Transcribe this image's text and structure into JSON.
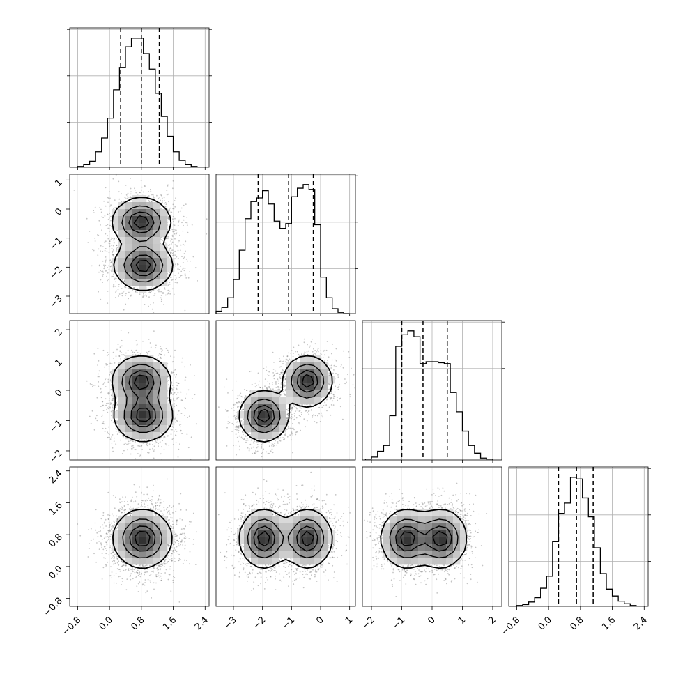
{
  "chart_data": {
    "type": "corner",
    "ticks": {
      "x0": [
        "−0.8",
        "0.0",
        "0.8",
        "1.6",
        "2.4"
      ],
      "x1": [
        "−3",
        "−2",
        "−1",
        "0",
        "1"
      ],
      "x2": [
        "−2",
        "−1",
        "0",
        "1",
        "2"
      ],
      "x3": [
        "−0.8",
        "0.0",
        "0.8",
        "1.6",
        "2.4"
      ],
      "y1": [
        "1",
        "0",
        "−1",
        "−2",
        "−3"
      ],
      "y2": [
        "2",
        "1",
        "0",
        "−1",
        "−2"
      ],
      "y3": [
        "2.4",
        "1.6",
        "0.8",
        "0.0",
        "−0.8"
      ]
    },
    "variables": [
      {
        "range": [
          -1.0,
          2.5
        ],
        "tick_values": [
          -0.8,
          0.0,
          0.8,
          1.6,
          2.4
        ],
        "quantiles": [
          0.28,
          0.8,
          1.25
        ]
      },
      {
        "range": [
          -3.6,
          1.2
        ],
        "tick_values": [
          -3,
          -2,
          -1,
          0,
          1
        ],
        "quantiles": [
          -2.15,
          -1.1,
          -0.25
        ]
      },
      {
        "range": [
          -2.3,
          2.3
        ],
        "tick_values": [
          -2,
          -1,
          0,
          1,
          2
        ],
        "quantiles": [
          -1.0,
          -0.3,
          0.5
        ]
      },
      {
        "range": [
          -1.0,
          2.5
        ],
        "tick_values": [
          -0.8,
          0.0,
          0.8,
          1.6,
          2.4
        ],
        "quantiles": [
          0.25,
          0.7,
          1.12
        ]
      }
    ],
    "histograms": [
      {
        "bin_edges": [
          -0.8,
          -0.65,
          -0.5,
          -0.35,
          -0.2,
          -0.05,
          0.1,
          0.25,
          0.4,
          0.55,
          0.7,
          0.85,
          1.0,
          1.15,
          1.3,
          1.45,
          1.6,
          1.75,
          1.9,
          2.05,
          2.2
        ],
        "counts": [
          1,
          3,
          7,
          18,
          34,
          57,
          90,
          116,
          140,
          150,
          150,
          132,
          114,
          86,
          59,
          36,
          18,
          8,
          3,
          1
        ]
      },
      {
        "bin_edges": [
          -3.6,
          -3.4,
          -3.2,
          -3.0,
          -2.8,
          -2.6,
          -2.4,
          -2.2,
          -2.0,
          -1.8,
          -1.6,
          -1.4,
          -1.2,
          -1.0,
          -0.8,
          -0.6,
          -0.4,
          -0.2,
          0.0,
          0.2,
          0.4,
          0.6,
          0.8,
          1.0
        ],
        "counts": [
          2,
          5,
          13,
          28,
          52,
          78,
          92,
          95,
          101,
          90,
          76,
          70,
          74,
          96,
          103,
          106,
          102,
          73,
          30,
          13,
          4,
          1,
          0
        ]
      },
      {
        "bin_edges": [
          -2.2,
          -2.0,
          -1.8,
          -1.6,
          -1.4,
          -1.2,
          -1.0,
          -0.8,
          -0.6,
          -0.4,
          -0.2,
          0.0,
          0.2,
          0.4,
          0.6,
          0.8,
          1.0,
          1.2,
          1.4,
          1.6,
          1.8,
          2.0
        ],
        "counts": [
          1,
          3,
          9,
          15,
          46,
          118,
          130,
          134,
          128,
          100,
          102,
          102,
          101,
          100,
          70,
          50,
          30,
          15,
          7,
          2,
          1
        ]
      },
      {
        "bin_edges": [
          -0.8,
          -0.65,
          -0.5,
          -0.35,
          -0.2,
          -0.05,
          0.1,
          0.25,
          0.4,
          0.55,
          0.7,
          0.85,
          1.0,
          1.15,
          1.3,
          1.45,
          1.6,
          1.75,
          1.9,
          2.05,
          2.2
        ],
        "counts": [
          1,
          2,
          5,
          10,
          21,
          35,
          75,
          108,
          120,
          150,
          148,
          126,
          104,
          68,
          38,
          20,
          12,
          6,
          3,
          1
        ]
      }
    ],
    "distribution_components": [
      {
        "weight": 0.5,
        "mean": [
          0.8,
          -0.45,
          0.3,
          0.7
        ],
        "sd": [
          0.35,
          0.4,
          0.4,
          0.35
        ]
      },
      {
        "weight": 0.5,
        "mean": [
          0.85,
          -1.95,
          -0.85,
          0.7
        ],
        "sd": [
          0.35,
          0.4,
          0.4,
          0.35
        ]
      }
    ],
    "contour_levels": [
      0.118,
      0.393,
      0.675,
      0.865
    ],
    "legend": "none",
    "grid": true
  }
}
